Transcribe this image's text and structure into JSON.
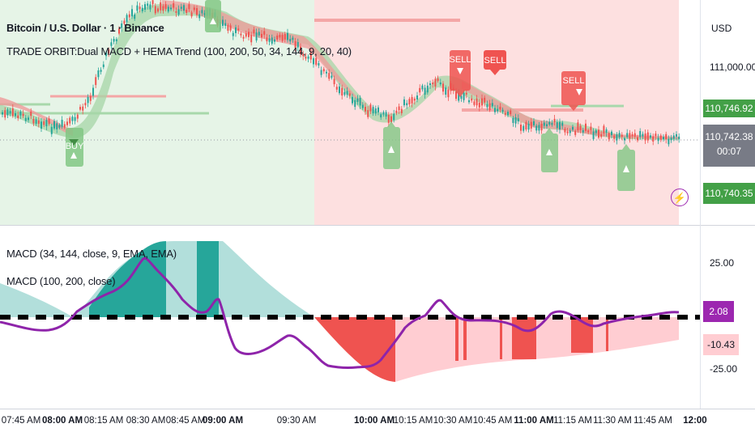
{
  "header": {
    "symbol_line": "Bitcoin / U.S. Dollar · 1 · Binance",
    "indicator_line": "TRADE ORBIT:Dual MACD + HEMA Trend (100, 200, 50, 34, 144, 9, 20, 40)"
  },
  "price_axis": {
    "currency": "USD",
    "level_label": "111,000.00",
    "tag_high": "110,746.92",
    "tag_last": "110,742.38",
    "countdown": "00:07",
    "tag_low": "110,740.35"
  },
  "signals": {
    "buy_label": "BUY",
    "sell_label": "SELL"
  },
  "macd_panel": {
    "legend_1": "MACD (34, 144, close, 9, EMA, EMA)",
    "legend_2": "MACD (100, 200, close)",
    "axis_top": "25.00",
    "axis_bottom": "-25.00",
    "value_purple": "2.08",
    "value_pink": "-10.43"
  },
  "time_axis": {
    "labels": [
      "07:45 AM",
      "08:00 AM",
      "08:15 AM",
      "08:30 AM",
      "08:45 AM",
      "09:00 AM",
      "09:30 AM",
      "10:00 AM",
      "10:15 AM",
      "10:30 AM",
      "10:45 AM",
      "11:00 AM",
      "11:15 AM",
      "11:30 AM",
      "11:45 AM",
      "12:00"
    ]
  },
  "colors": {
    "bullish": "#26a69a",
    "bearish": "#ef5350",
    "macd_line": "#8e24aa",
    "bull_zone": "#e8f5e9",
    "bear_zone": "#fde2e2"
  }
}
